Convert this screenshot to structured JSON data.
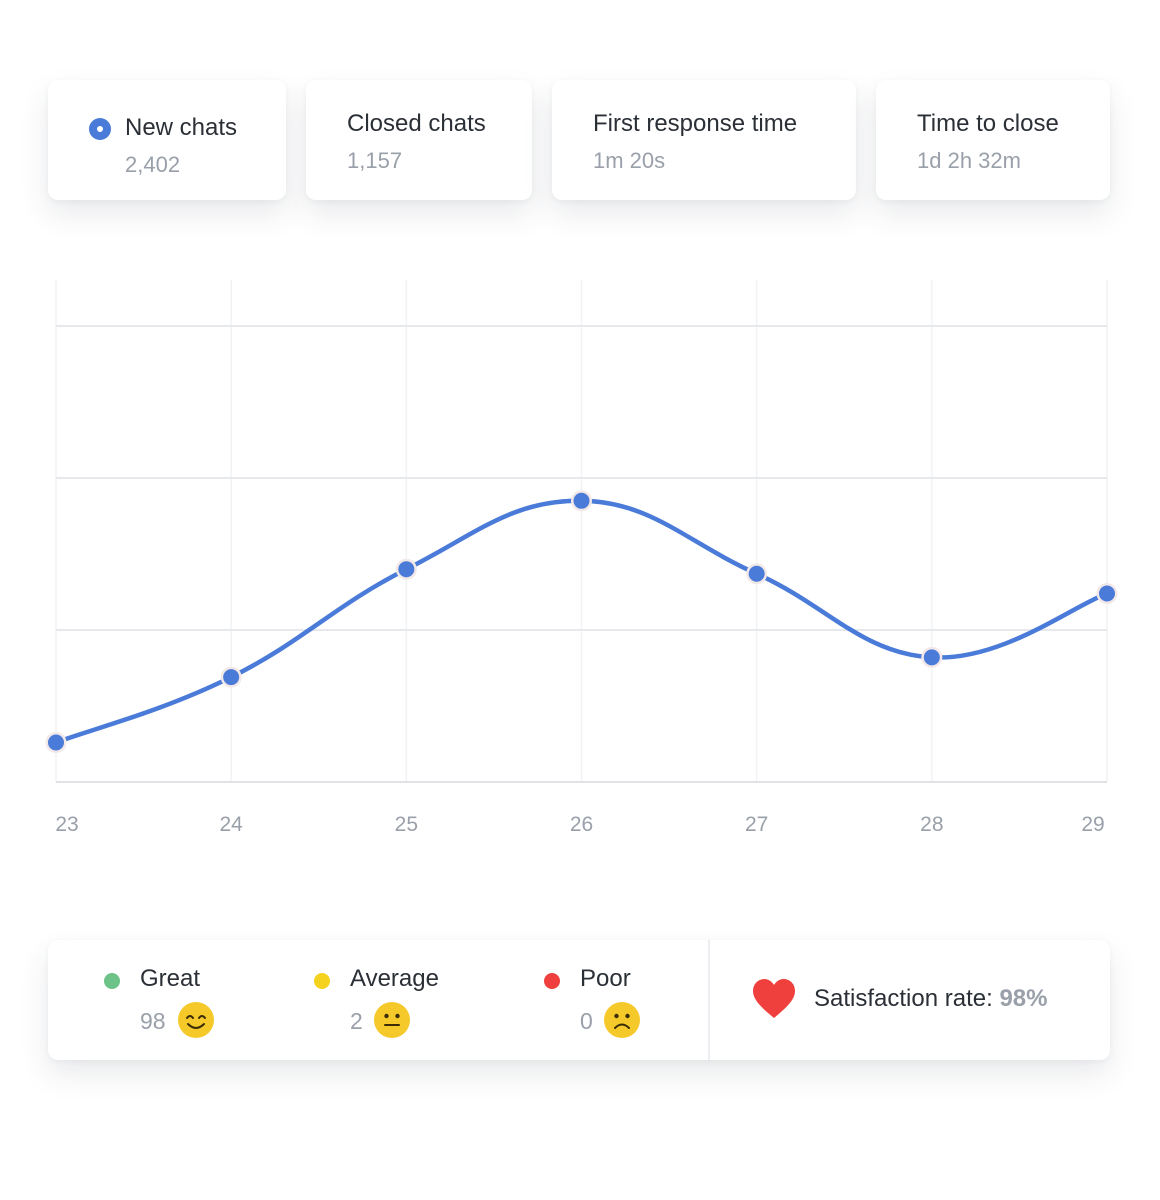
{
  "stats": {
    "new_chats": {
      "label": "New chats",
      "value": "2,402"
    },
    "closed_chats": {
      "label": "Closed chats",
      "value": "1,157"
    },
    "first_response": {
      "label": "First response time",
      "value": "1m 20s"
    },
    "time_to_close": {
      "label": "Time to close",
      "value": "1d 2h 32m"
    }
  },
  "colors": {
    "accent": "#4a7bd8",
    "great": "#6cc287",
    "average": "#f5d21d",
    "poor": "#f0403e",
    "heart": "#f0403e",
    "face": "#f5c92a"
  },
  "chart_data": {
    "type": "line",
    "categories": [
      "23",
      "24",
      "25",
      "26",
      "27",
      "28",
      "29"
    ],
    "values": [
      0.26,
      0.69,
      1.4,
      1.85,
      1.37,
      0.82,
      1.24
    ],
    "ylim": [
      0,
      3.0
    ],
    "smooth": true,
    "grid": true,
    "markers": true
  },
  "ratings": {
    "great": {
      "label": "Great",
      "count": "98",
      "icon": "smiling-face-icon"
    },
    "average": {
      "label": "Average",
      "count": "2",
      "icon": "neutral-face-icon"
    },
    "poor": {
      "label": "Poor",
      "count": "0",
      "icon": "frowning-face-icon"
    }
  },
  "satisfaction": {
    "label": "Satisfaction rate:",
    "value": "98%",
    "icon": "heart-icon"
  }
}
